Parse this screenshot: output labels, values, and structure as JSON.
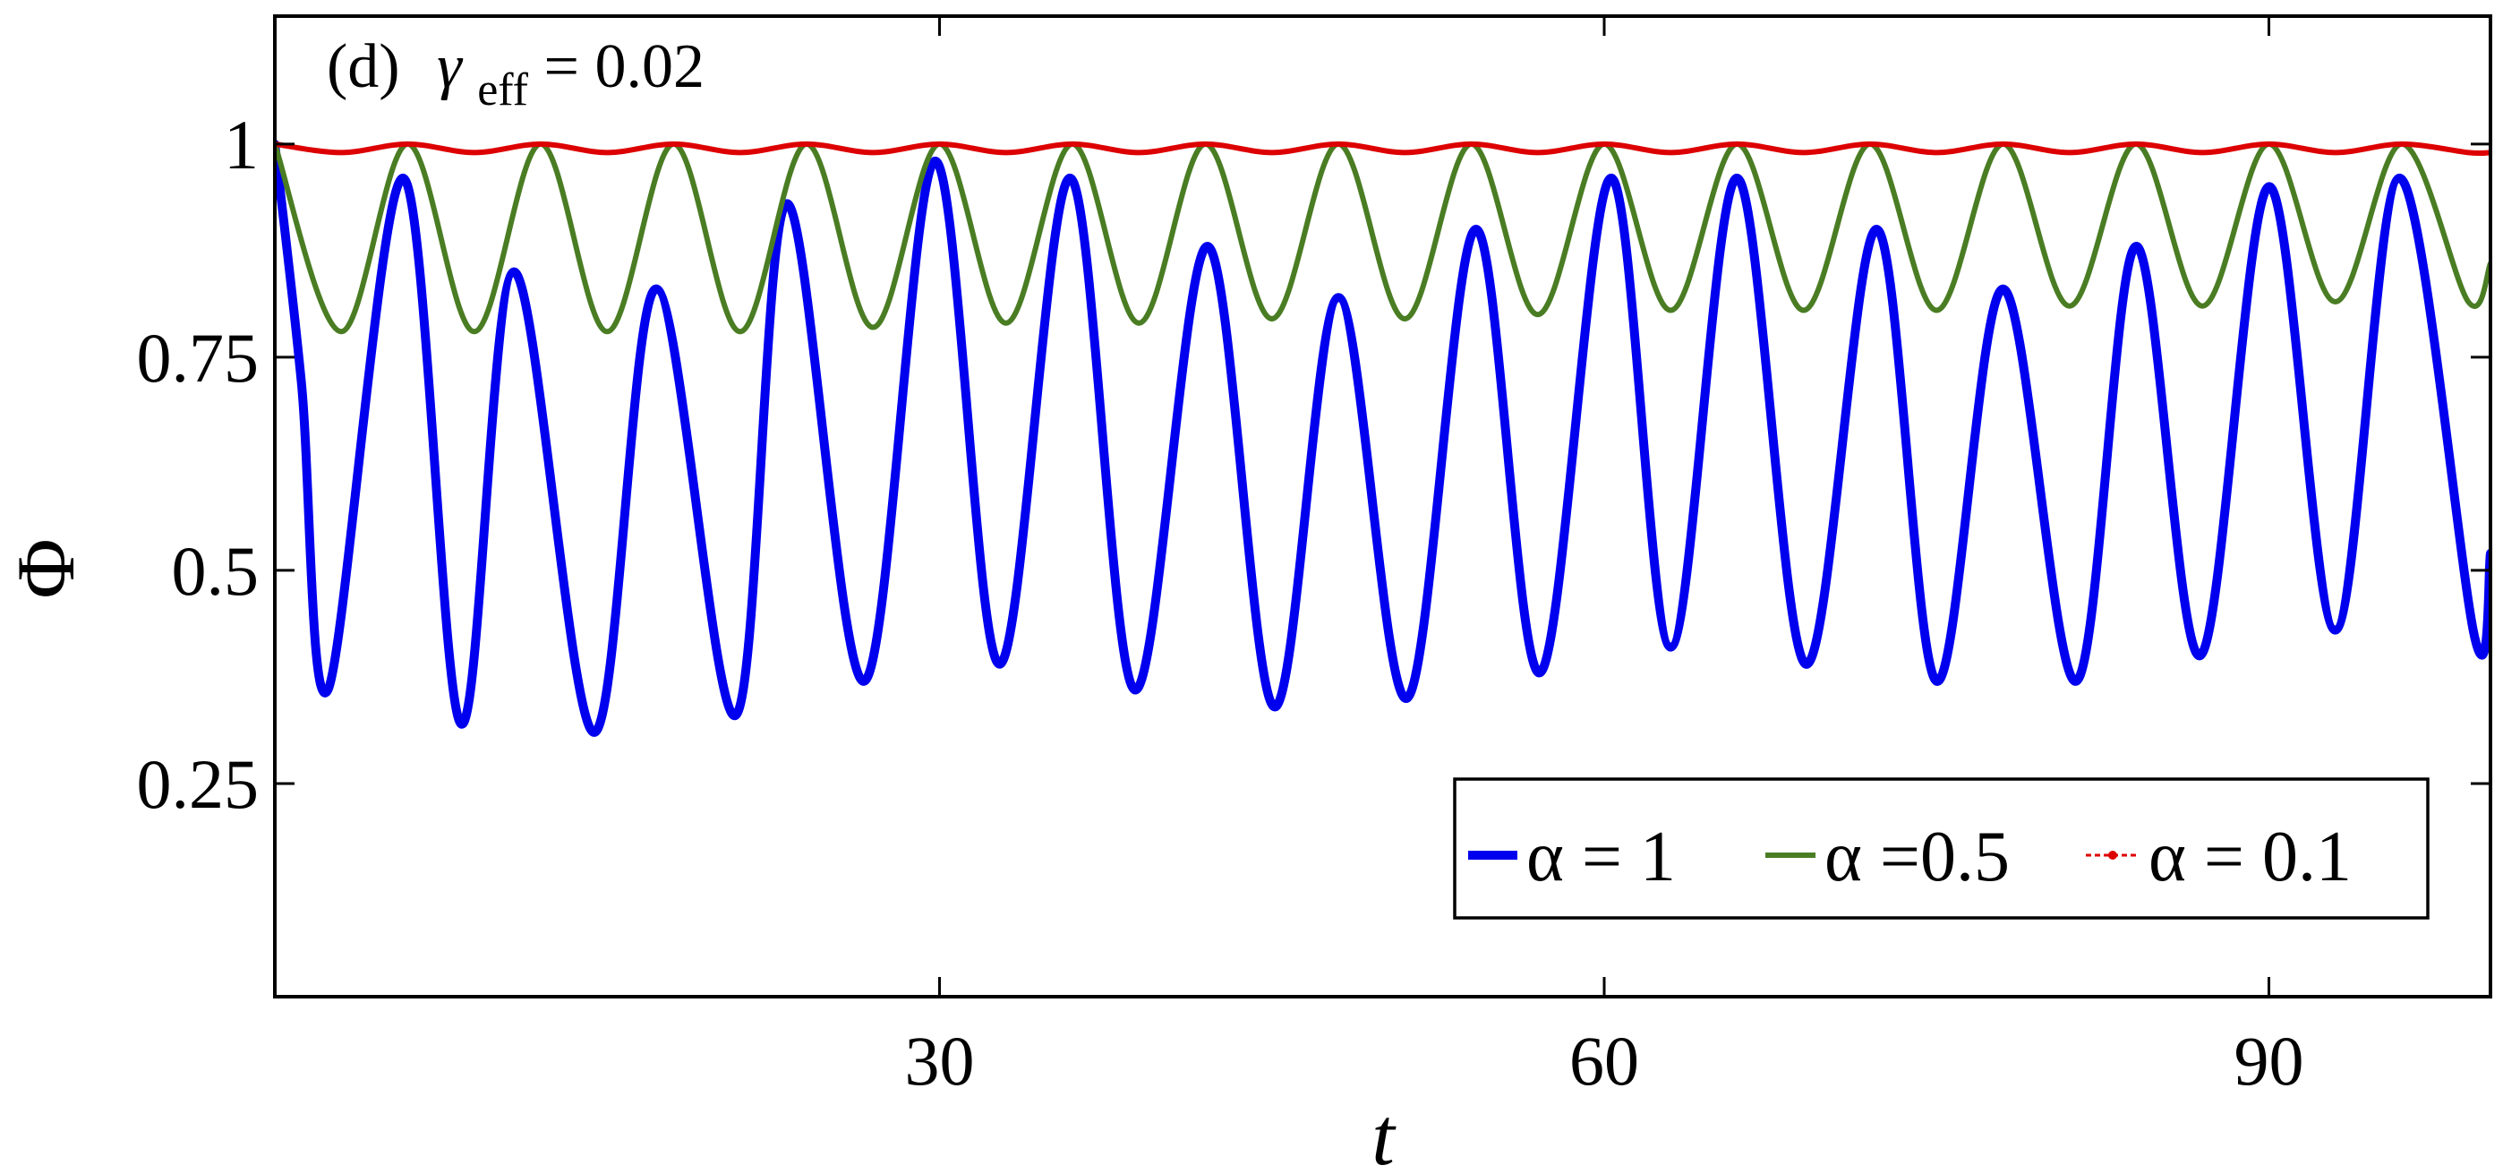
{
  "chart_data": {
    "type": "line",
    "panel": "(d)",
    "annotation": {
      "panel": "(d)",
      "symbol": "γ",
      "subscript": "eff",
      "rest": " = 0.02"
    },
    "xlabel": "t",
    "ylabel": "Φ",
    "xlim": [
      0,
      100
    ],
    "ylim": [
      0,
      1.15
    ],
    "xticks": [
      30,
      60,
      90
    ],
    "xtick_labels": [
      "30",
      "60",
      "90"
    ],
    "yticks": [
      0.25,
      0.5,
      0.75,
      1
    ],
    "ytick_labels": [
      "0.25",
      "0.5",
      "0.75",
      "1"
    ],
    "grid": false,
    "legend_position": "bottom-right",
    "series": [
      {
        "name": "α = 1",
        "color": "#0000ee",
        "line_style": "solid",
        "x": [
          0,
          1.2,
          2.4,
          5.8,
          8.4,
          10.8,
          14.4,
          17.2,
          20.8,
          23.1,
          26.6,
          29.8,
          32.7,
          35.9,
          38.8,
          42.1,
          45.1,
          48.0,
          51.1,
          54.2,
          57.1,
          60.3,
          63.0,
          66.0,
          69.1,
          72.3,
          75.0,
          78.0,
          81.3,
          84.0,
          86.9,
          90.0,
          93.0,
          95.9,
          99.3,
          100
        ],
        "y": [
          1.0,
          0.72,
          0.36,
          0.96,
          0.32,
          0.85,
          0.31,
          0.83,
          0.33,
          0.93,
          0.37,
          0.98,
          0.39,
          0.96,
          0.36,
          0.88,
          0.34,
          0.82,
          0.35,
          0.9,
          0.38,
          0.96,
          0.41,
          0.96,
          0.39,
          0.9,
          0.37,
          0.83,
          0.37,
          0.88,
          0.4,
          0.95,
          0.43,
          0.96,
          0.42,
          0.52
        ]
      },
      {
        "name": "α =0.5",
        "color": "#4a7d23",
        "line_style": "solid",
        "x": [
          0,
          3.0,
          6.0,
          9.0,
          12.0,
          15.0,
          18.0,
          21.0,
          24.0,
          27.0,
          30.0,
          33.0,
          36.0,
          39.0,
          42.0,
          45.0,
          48.0,
          51.0,
          54.0,
          57.0,
          60.0,
          63.0,
          66.0,
          69.0,
          72.0,
          75.0,
          78.0,
          81.0,
          84.0,
          87.0,
          90.0,
          93.0,
          96.0,
          99.0,
          100
        ],
        "y": [
          1.0,
          0.78,
          1.0,
          0.78,
          1.0,
          0.78,
          1.0,
          0.78,
          1.0,
          0.785,
          1.0,
          0.79,
          1.0,
          0.79,
          1.0,
          0.795,
          1.0,
          0.795,
          1.0,
          0.8,
          1.0,
          0.805,
          1.0,
          0.805,
          1.0,
          0.805,
          1.0,
          0.81,
          1.0,
          0.81,
          1.0,
          0.815,
          1.0,
          0.815,
          0.86
        ]
      },
      {
        "name": "α = 0.1",
        "color": "#dd0000",
        "line_style": "solid with dot markers",
        "x": [
          0,
          3.0,
          6.0,
          9.0,
          12.0,
          15.0,
          18.0,
          21.0,
          24.0,
          27.0,
          30.0,
          33.0,
          36.0,
          39.0,
          42.0,
          45.0,
          48.0,
          51.0,
          54.0,
          57.0,
          60.0,
          63.0,
          66.0,
          69.0,
          72.0,
          75.0,
          78.0,
          81.0,
          84.0,
          87.0,
          90.0,
          93.0,
          96.0,
          99.0,
          100
        ],
        "y": [
          1.0,
          0.99,
          1.0,
          0.99,
          1.0,
          0.99,
          1.0,
          0.99,
          1.0,
          0.99,
          1.0,
          0.99,
          1.0,
          0.99,
          1.0,
          0.99,
          1.0,
          0.99,
          1.0,
          0.99,
          1.0,
          0.99,
          1.0,
          0.99,
          1.0,
          0.99,
          1.0,
          0.99,
          1.0,
          0.99,
          1.0,
          0.99,
          1.0,
          0.99,
          0.99
        ]
      }
    ]
  }
}
